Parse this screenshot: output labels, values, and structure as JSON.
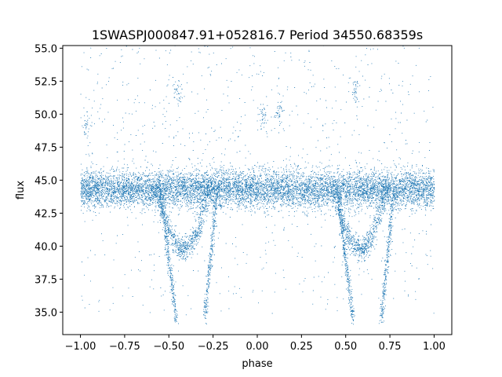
{
  "chart_data": {
    "type": "scatter",
    "title": "1SWASPJ000847.91+052816.7 Period 34550.68359s",
    "xlabel": "phase",
    "ylabel": "flux",
    "xlim": [
      -1.1,
      1.1
    ],
    "ylim": [
      33.3,
      55.2
    ],
    "xticks": [
      -1.0,
      -0.75,
      -0.5,
      -0.25,
      0.0,
      0.25,
      0.5,
      0.75,
      1.0
    ],
    "xtick_labels": [
      "−1.00",
      "−0.75",
      "−0.50",
      "−0.25",
      "0.00",
      "0.25",
      "0.50",
      "0.75",
      "1.00"
    ],
    "yticks": [
      35.0,
      37.5,
      40.0,
      42.5,
      45.0,
      47.5,
      50.0,
      52.5,
      55.0
    ],
    "ytick_labels": [
      "35.0",
      "37.5",
      "40.0",
      "42.5",
      "45.0",
      "47.5",
      "50.0",
      "52.5",
      "55.0"
    ],
    "grid": false,
    "point_color": "#1f77b4",
    "series": [
      {
        "baseline_flux": 44.3,
        "baseline_scatter": 0.7,
        "phase_range": [
          -1.0,
          1.0
        ],
        "eclipses": [
          {
            "center_phase": -0.38,
            "ingress_phase": -0.55,
            "egress_phase": -0.23,
            "min_flux": 34.4
          },
          {
            "center_phase": 0.62,
            "ingress_phase": 0.45,
            "egress_phase": 0.77,
            "min_flux": 34.4
          }
        ],
        "secondary_branch": [
          {
            "center_phase": -0.42,
            "min_flux": 39.8
          },
          {
            "center_phase": 0.58,
            "min_flux": 39.8
          }
        ],
        "outlier_clumps": [
          {
            "phase": -0.97,
            "flux": 49.2
          },
          {
            "phase": 0.03,
            "flux": 49.8
          },
          {
            "phase": 0.55,
            "flux": 51.6
          },
          {
            "phase": -0.45,
            "flux": 51.6
          },
          {
            "phase": 0.12,
            "flux": 50.3
          }
        ]
      }
    ]
  }
}
